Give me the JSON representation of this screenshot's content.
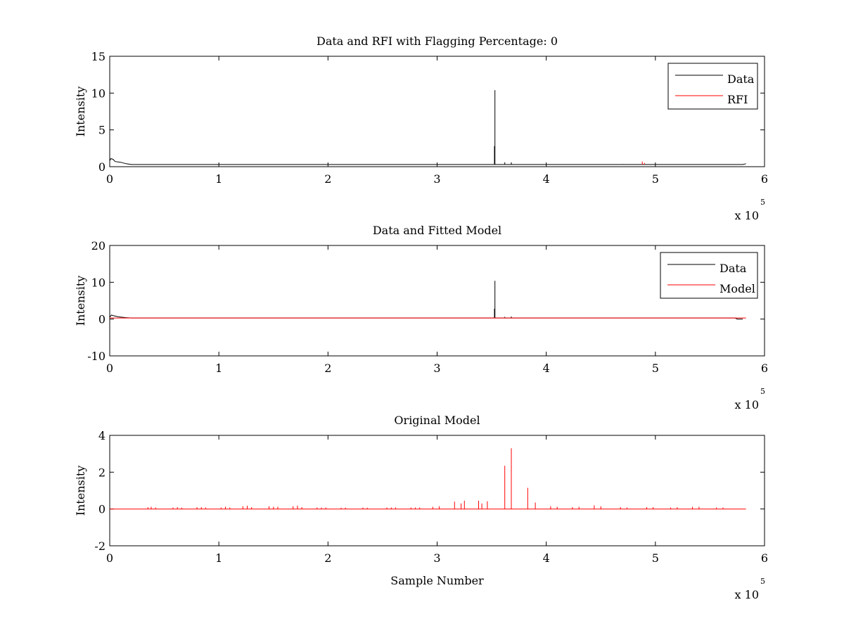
{
  "chart_data": [
    {
      "type": "line",
      "title": "Data and RFI with Flagging Percentage: 0",
      "xlabel": "",
      "ylabel": "Intensity",
      "xlim": [
        0,
        600000
      ],
      "ylim": [
        0,
        15
      ],
      "xticks": [
        0,
        1,
        2,
        3,
        4,
        5,
        6
      ],
      "yticks": [
        0,
        5,
        10,
        15
      ],
      "x_multiplier": "x 10",
      "x_multiplier_exp": "5",
      "legend": {
        "placement": "top-right",
        "entries": [
          "Data",
          "RFI"
        ]
      },
      "series": [
        {
          "name": "Data",
          "color": "#000000",
          "baseline": 0.3,
          "points": [
            [
              0,
              0.8
            ],
            [
              1000,
              1.1
            ],
            [
              3000,
              1.0
            ],
            [
              5000,
              0.7
            ],
            [
              10000,
              0.6
            ],
            [
              15000,
              0.4
            ],
            [
              20000,
              0.3
            ],
            [
              580000,
              0.3
            ],
            [
              583000,
              0.4
            ]
          ],
          "spikes": [
            [
              353000,
              10.4
            ],
            [
              352500,
              2.8
            ],
            [
              362000,
              0.6
            ],
            [
              368000,
              0.6
            ],
            [
              470000,
              0.35
            ]
          ]
        },
        {
          "name": "RFI",
          "color": "#ff0000",
          "baseline": 0.3,
          "points": [],
          "spikes": [
            [
              488000,
              0.7
            ],
            [
              490000,
              0.5
            ]
          ]
        }
      ]
    },
    {
      "type": "line",
      "title": "Data and Fitted Model",
      "xlabel": "",
      "ylabel": "Intensity",
      "xlim": [
        0,
        600000
      ],
      "ylim": [
        -10,
        20
      ],
      "xticks": [
        0,
        1,
        2,
        3,
        4,
        5,
        6
      ],
      "yticks": [
        -10,
        0,
        10,
        20
      ],
      "x_multiplier": "x 10",
      "x_multiplier_exp": "5",
      "legend": {
        "placement": "top-right",
        "entries": [
          "Data",
          "Model"
        ]
      },
      "series": [
        {
          "name": "Data",
          "color": "#000000",
          "baseline": 0.3,
          "points": [
            [
              0,
              0.5
            ],
            [
              1500,
              1.1
            ],
            [
              4000,
              0.9
            ],
            [
              8000,
              0.6
            ],
            [
              15000,
              0.4
            ],
            [
              20000,
              0.3
            ],
            [
              573000,
              0.3
            ],
            [
              575000,
              0.0
            ],
            [
              580000,
              0.0
            ]
          ],
          "spikes": [
            [
              353000,
              10.4
            ],
            [
              352500,
              2.8
            ],
            [
              362000,
              0.6
            ],
            [
              368000,
              0.7
            ]
          ]
        },
        {
          "name": "Model",
          "color": "#ff0000",
          "baseline": 0.3,
          "points": [
            [
              0,
              0.3
            ],
            [
              583000,
              0.3
            ]
          ],
          "spikes": []
        }
      ]
    },
    {
      "type": "line",
      "title": "Original Model",
      "xlabel": "Sample Number",
      "ylabel": "Intensity",
      "xlim": [
        0,
        600000
      ],
      "ylim": [
        -2,
        4
      ],
      "xticks": [
        0,
        1,
        2,
        3,
        4,
        5,
        6
      ],
      "yticks": [
        -2,
        0,
        2,
        4
      ],
      "x_multiplier": "x 10",
      "x_multiplier_exp": "5",
      "legend": null,
      "series": [
        {
          "name": "",
          "color": "#ff0000",
          "baseline": 0.0,
          "points": [
            [
              0,
              0.0
            ],
            [
              583000,
              0.0
            ]
          ],
          "spikes": [
            [
              35000,
              0.1
            ],
            [
              38000,
              0.12
            ],
            [
              42000,
              0.08
            ],
            [
              58000,
              0.08
            ],
            [
              62000,
              0.1
            ],
            [
              66000,
              0.07
            ],
            [
              80000,
              0.1
            ],
            [
              84000,
              0.1
            ],
            [
              88000,
              0.08
            ],
            [
              102000,
              0.08
            ],
            [
              106000,
              0.12
            ],
            [
              110000,
              0.08
            ],
            [
              122000,
              0.15
            ],
            [
              126000,
              0.18
            ],
            [
              130000,
              0.1
            ],
            [
              146000,
              0.15
            ],
            [
              150000,
              0.12
            ],
            [
              154000,
              0.12
            ],
            [
              168000,
              0.15
            ],
            [
              172000,
              0.18
            ],
            [
              176000,
              0.1
            ],
            [
              190000,
              0.08
            ],
            [
              194000,
              0.08
            ],
            [
              198000,
              0.08
            ],
            [
              212000,
              0.07
            ],
            [
              216000,
              0.07
            ],
            [
              232000,
              0.08
            ],
            [
              236000,
              0.07
            ],
            [
              254000,
              0.08
            ],
            [
              258000,
              0.08
            ],
            [
              262000,
              0.08
            ],
            [
              276000,
              0.08
            ],
            [
              280000,
              0.08
            ],
            [
              284000,
              0.08
            ],
            [
              296000,
              0.12
            ],
            [
              302000,
              0.15
            ],
            [
              316000,
              0.4
            ],
            [
              322000,
              0.3
            ],
            [
              325000,
              0.45
            ],
            [
              338000,
              0.45
            ],
            [
              341000,
              0.3
            ],
            [
              346000,
              0.42
            ],
            [
              362000,
              2.35
            ],
            [
              368000,
              3.3
            ],
            [
              383000,
              1.15
            ],
            [
              390000,
              0.35
            ],
            [
              404000,
              0.15
            ],
            [
              410000,
              0.12
            ],
            [
              424000,
              0.1
            ],
            [
              430000,
              0.12
            ],
            [
              444000,
              0.2
            ],
            [
              450000,
              0.15
            ],
            [
              468000,
              0.1
            ],
            [
              474000,
              0.08
            ],
            [
              492000,
              0.1
            ],
            [
              498000,
              0.1
            ],
            [
              514000,
              0.08
            ],
            [
              520000,
              0.1
            ],
            [
              534000,
              0.12
            ],
            [
              540000,
              0.12
            ],
            [
              556000,
              0.08
            ],
            [
              562000,
              0.08
            ]
          ]
        }
      ]
    }
  ]
}
